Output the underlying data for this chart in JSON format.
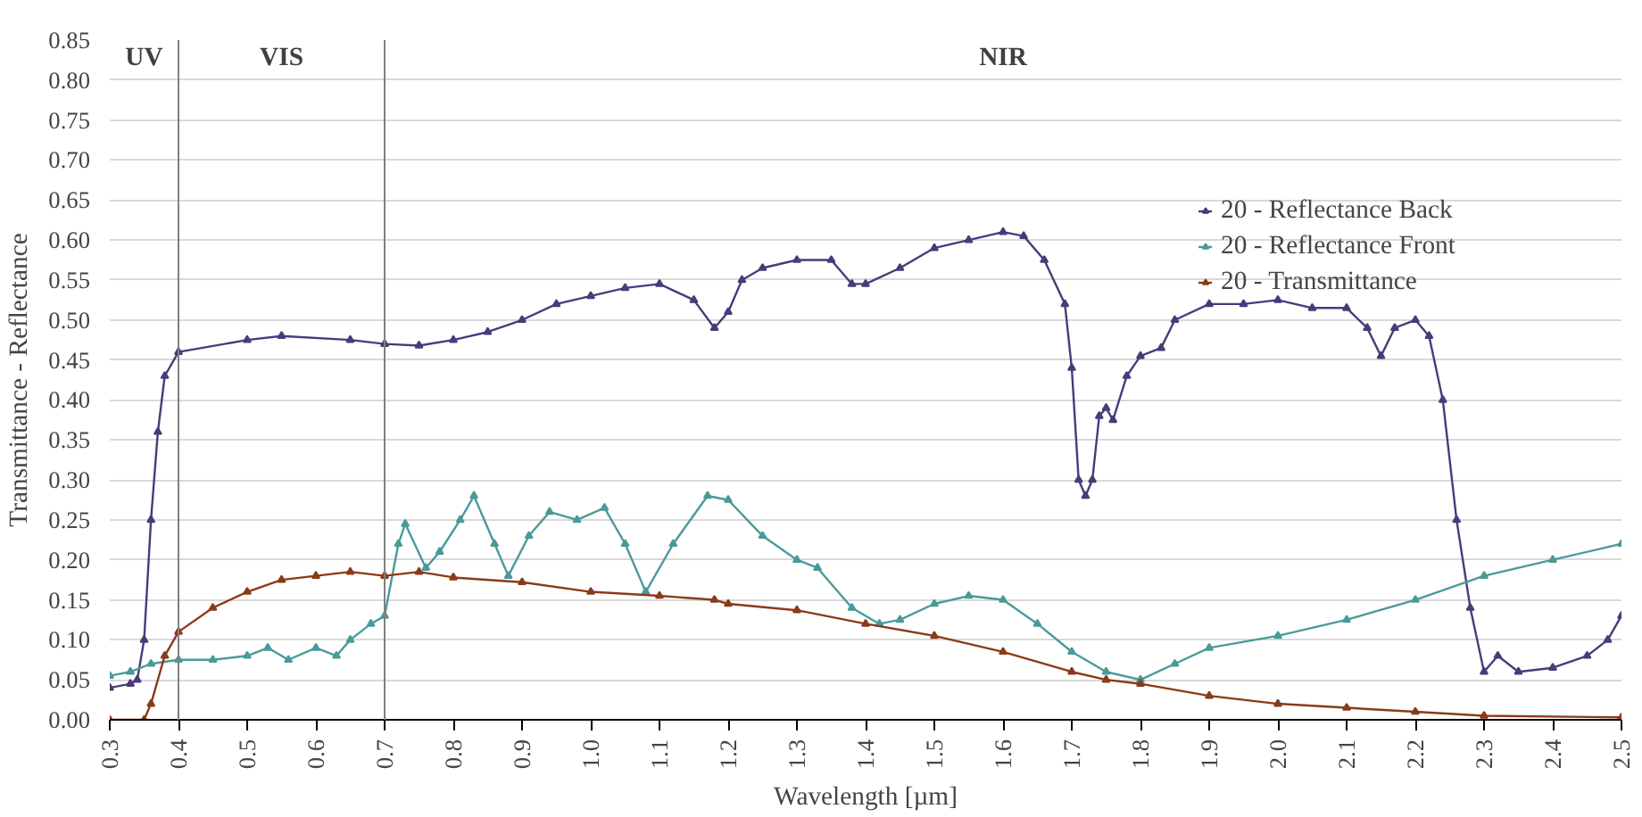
{
  "chart_data": {
    "type": "line",
    "xlabel": "Wavelength [µm]",
    "ylabel": "Transmittance - Reflectance",
    "xlim": [
      0.3,
      2.5
    ],
    "xticks": [
      0.3,
      0.4,
      0.5,
      0.6,
      0.7,
      0.8,
      0.9,
      {
        "value": 1.0,
        "label": "1.0"
      },
      1.1,
      1.2,
      1.3,
      1.4,
      1.5,
      1.6,
      1.7,
      1.8,
      1.9,
      {
        "value": 2.0,
        "label": "2.0"
      },
      2.1,
      2.2,
      2.3,
      2.4,
      2.5
    ],
    "ylim": [
      0,
      0.85
    ],
    "yticks": [
      {
        "value": 0,
        "label": "0.00"
      },
      {
        "value": 0.05,
        "label": "0.05"
      },
      {
        "value": 0.1,
        "label": "0.10"
      },
      {
        "value": 0.15,
        "label": "0.15"
      },
      {
        "value": 0.2,
        "label": "0.20"
      },
      {
        "value": 0.25,
        "label": "0.25"
      },
      {
        "value": 0.3,
        "label": "0.30"
      },
      {
        "value": 0.35,
        "label": "0.35"
      },
      {
        "value": 0.4,
        "label": "0.40"
      },
      {
        "value": 0.45,
        "label": "0.45"
      },
      {
        "value": 0.5,
        "label": "0.50"
      },
      {
        "value": 0.55,
        "label": "0.55"
      },
      {
        "value": 0.6,
        "label": "0.60"
      },
      {
        "value": 0.65,
        "label": "0.65"
      },
      {
        "value": 0.7,
        "label": "0.70"
      },
      {
        "value": 0.75,
        "label": "0.75"
      },
      {
        "value": 0.8,
        "label": "0.80"
      },
      {
        "value": 0.85,
        "label": "0.85"
      }
    ],
    "grid": "y",
    "legend": "right",
    "marker": "triangle",
    "line_style": "solid",
    "ref_lines": [
      {
        "axis": "x",
        "value": 0.4,
        "color": "#808080"
      },
      {
        "axis": "x",
        "value": 0.7,
        "color": "#808080"
      }
    ],
    "annotations": [
      "UV",
      "VIS",
      "NIR"
    ],
    "series": [
      {
        "name": "20 - Reflectance Back",
        "color": "#4b3a7a",
        "x": [
          0.3,
          0.33,
          0.34,
          0.35,
          0.36,
          0.37,
          0.38,
          0.4,
          0.5,
          0.55,
          0.65,
          0.7,
          0.75,
          0.8,
          0.85,
          0.9,
          0.95,
          1.0,
          1.05,
          1.1,
          1.15,
          1.18,
          1.2,
          1.22,
          1.25,
          1.3,
          1.35,
          1.38,
          1.4,
          1.45,
          1.5,
          1.55,
          1.6,
          1.63,
          1.66,
          1.69,
          1.7,
          1.71,
          1.72,
          1.73,
          1.74,
          1.75,
          1.76,
          1.78,
          1.8,
          1.83,
          1.85,
          1.9,
          1.95,
          2.0,
          2.05,
          2.1,
          2.13,
          2.15,
          2.17,
          2.2,
          2.22,
          2.24,
          2.26,
          2.28,
          2.3,
          2.32,
          2.35,
          2.4,
          2.45,
          2.48,
          2.5
        ],
        "values": [
          0.04,
          0.045,
          0.05,
          0.1,
          0.25,
          0.36,
          0.43,
          0.46,
          0.475,
          0.48,
          0.475,
          0.47,
          0.468,
          0.475,
          0.485,
          0.5,
          0.52,
          0.53,
          0.54,
          0.545,
          0.525,
          0.49,
          0.51,
          0.55,
          0.565,
          0.575,
          0.575,
          0.545,
          0.545,
          0.565,
          0.59,
          0.6,
          0.61,
          0.605,
          0.575,
          0.52,
          0.44,
          0.3,
          0.28,
          0.3,
          0.38,
          0.39,
          0.375,
          0.43,
          0.455,
          0.465,
          0.5,
          0.52,
          0.52,
          0.525,
          0.515,
          0.515,
          0.49,
          0.455,
          0.49,
          0.5,
          0.48,
          0.4,
          0.25,
          0.14,
          0.06,
          0.08,
          0.06,
          0.065,
          0.08,
          0.1,
          0.13
        ]
      },
      {
        "name": "20 - Reflectance Front",
        "color": "#4a9a9a",
        "x": [
          0.3,
          0.33,
          0.36,
          0.4,
          0.45,
          0.5,
          0.53,
          0.56,
          0.6,
          0.63,
          0.65,
          0.68,
          0.7,
          0.72,
          0.73,
          0.76,
          0.78,
          0.81,
          0.83,
          0.86,
          0.88,
          0.91,
          0.94,
          0.98,
          1.02,
          1.05,
          1.08,
          1.12,
          1.17,
          1.2,
          1.25,
          1.3,
          1.33,
          1.38,
          1.42,
          1.45,
          1.5,
          1.55,
          1.6,
          1.65,
          1.7,
          1.75,
          1.8,
          1.85,
          1.9,
          2.0,
          2.1,
          2.2,
          2.3,
          2.4,
          2.5
        ],
        "values": [
          0.055,
          0.06,
          0.07,
          0.075,
          0.075,
          0.08,
          0.09,
          0.075,
          0.09,
          0.08,
          0.1,
          0.12,
          0.13,
          0.22,
          0.245,
          0.19,
          0.21,
          0.25,
          0.28,
          0.22,
          0.18,
          0.23,
          0.26,
          0.25,
          0.265,
          0.22,
          0.16,
          0.22,
          0.28,
          0.275,
          0.23,
          0.2,
          0.19,
          0.14,
          0.12,
          0.125,
          0.145,
          0.155,
          0.15,
          0.12,
          0.085,
          0.06,
          0.05,
          0.07,
          0.09,
          0.105,
          0.125,
          0.15,
          0.18,
          0.2,
          0.22
        ]
      },
      {
        "name": "20 - Transmittance",
        "color": "#8b3a1a",
        "x": [
          0.3,
          0.35,
          0.36,
          0.38,
          0.4,
          0.45,
          0.5,
          0.55,
          0.6,
          0.65,
          0.7,
          0.75,
          0.8,
          0.9,
          1.0,
          1.1,
          1.18,
          1.2,
          1.3,
          1.4,
          1.5,
          1.6,
          1.7,
          1.75,
          1.8,
          1.9,
          2.0,
          2.1,
          2.2,
          2.3,
          2.5
        ],
        "values": [
          0,
          0,
          0.02,
          0.08,
          0.11,
          0.14,
          0.16,
          0.175,
          0.18,
          0.185,
          0.18,
          0.185,
          0.178,
          0.172,
          0.16,
          0.155,
          0.15,
          0.145,
          0.137,
          0.12,
          0.105,
          0.085,
          0.06,
          0.05,
          0.045,
          0.03,
          0.02,
          0.015,
          0.01,
          0.005,
          0.003
        ]
      }
    ]
  }
}
